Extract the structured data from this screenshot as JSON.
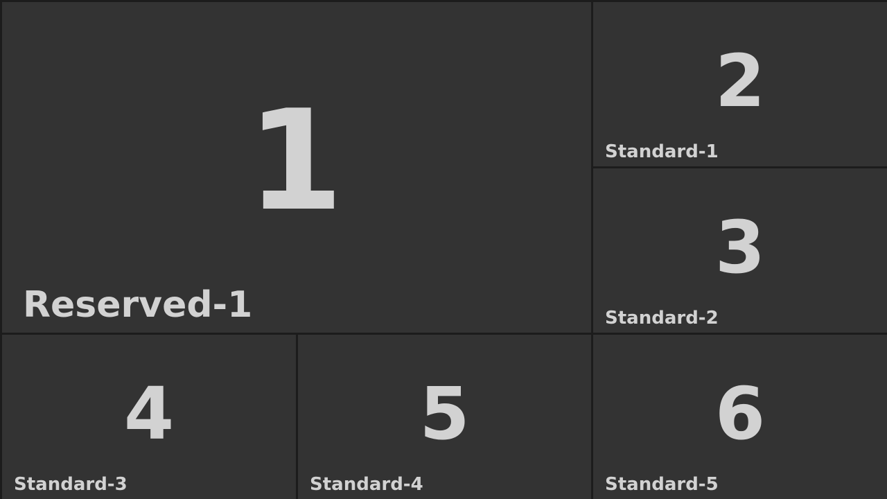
{
  "tiles": [
    {
      "number": "1",
      "label": "Reserved-1"
    },
    {
      "number": "2",
      "label": "Standard-1"
    },
    {
      "number": "3",
      "label": "Standard-2"
    },
    {
      "number": "4",
      "label": "Standard-3"
    },
    {
      "number": "5",
      "label": "Standard-4"
    },
    {
      "number": "6",
      "label": "Standard-5"
    }
  ],
  "colors": {
    "background": "#1c1c1c",
    "tile": "#333333",
    "text": "#d2d2d2"
  }
}
